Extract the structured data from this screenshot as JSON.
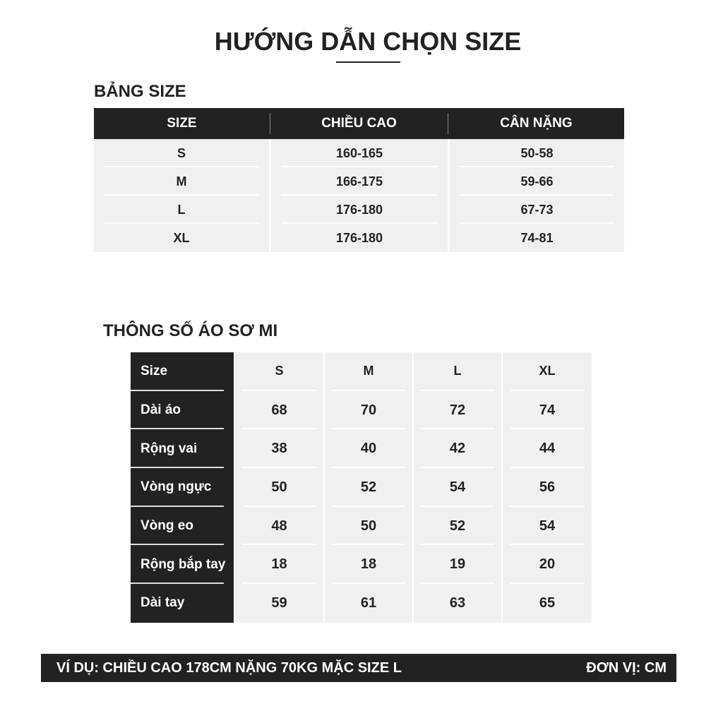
{
  "title": "HƯỚNG DẪN CHỌN SIZE",
  "size_table": {
    "heading": "BẢNG SIZE",
    "columns": [
      "SIZE",
      "CHIỀU CAO",
      "CÂN NẶNG"
    ],
    "rows": [
      [
        "S",
        "160-165",
        "50-58"
      ],
      [
        "M",
        "166-175",
        "59-66"
      ],
      [
        "L",
        "176-180",
        "67-73"
      ],
      [
        "XL",
        "176-180",
        "74-81"
      ]
    ]
  },
  "shirt_table": {
    "heading": "THÔNG SỐ ÁO SƠ MI",
    "row_labels": [
      "Size",
      "Dài áo",
      "Rộng vai",
      "Vòng ngực",
      "Vòng eo",
      "Rộng bắp tay",
      "Dài tay"
    ],
    "columns": [
      {
        "size": "S",
        "values": [
          "68",
          "38",
          "50",
          "48",
          "18",
          "59"
        ]
      },
      {
        "size": "M",
        "values": [
          "70",
          "40",
          "52",
          "50",
          "18",
          "61"
        ]
      },
      {
        "size": "L",
        "values": [
          "72",
          "42",
          "54",
          "52",
          "19",
          "63"
        ]
      },
      {
        "size": "XL",
        "values": [
          "74",
          "44",
          "56",
          "54",
          "20",
          "65"
        ]
      }
    ]
  },
  "footer": {
    "example": "VÍ DỤ: CHIỀU CAO 178CM NẶNG 70KG MẶC SIZE L",
    "unit": "ĐƠN VỊ: CM"
  },
  "colors": {
    "dark": "#222222",
    "cell_bg": "#f0f0f0"
  }
}
